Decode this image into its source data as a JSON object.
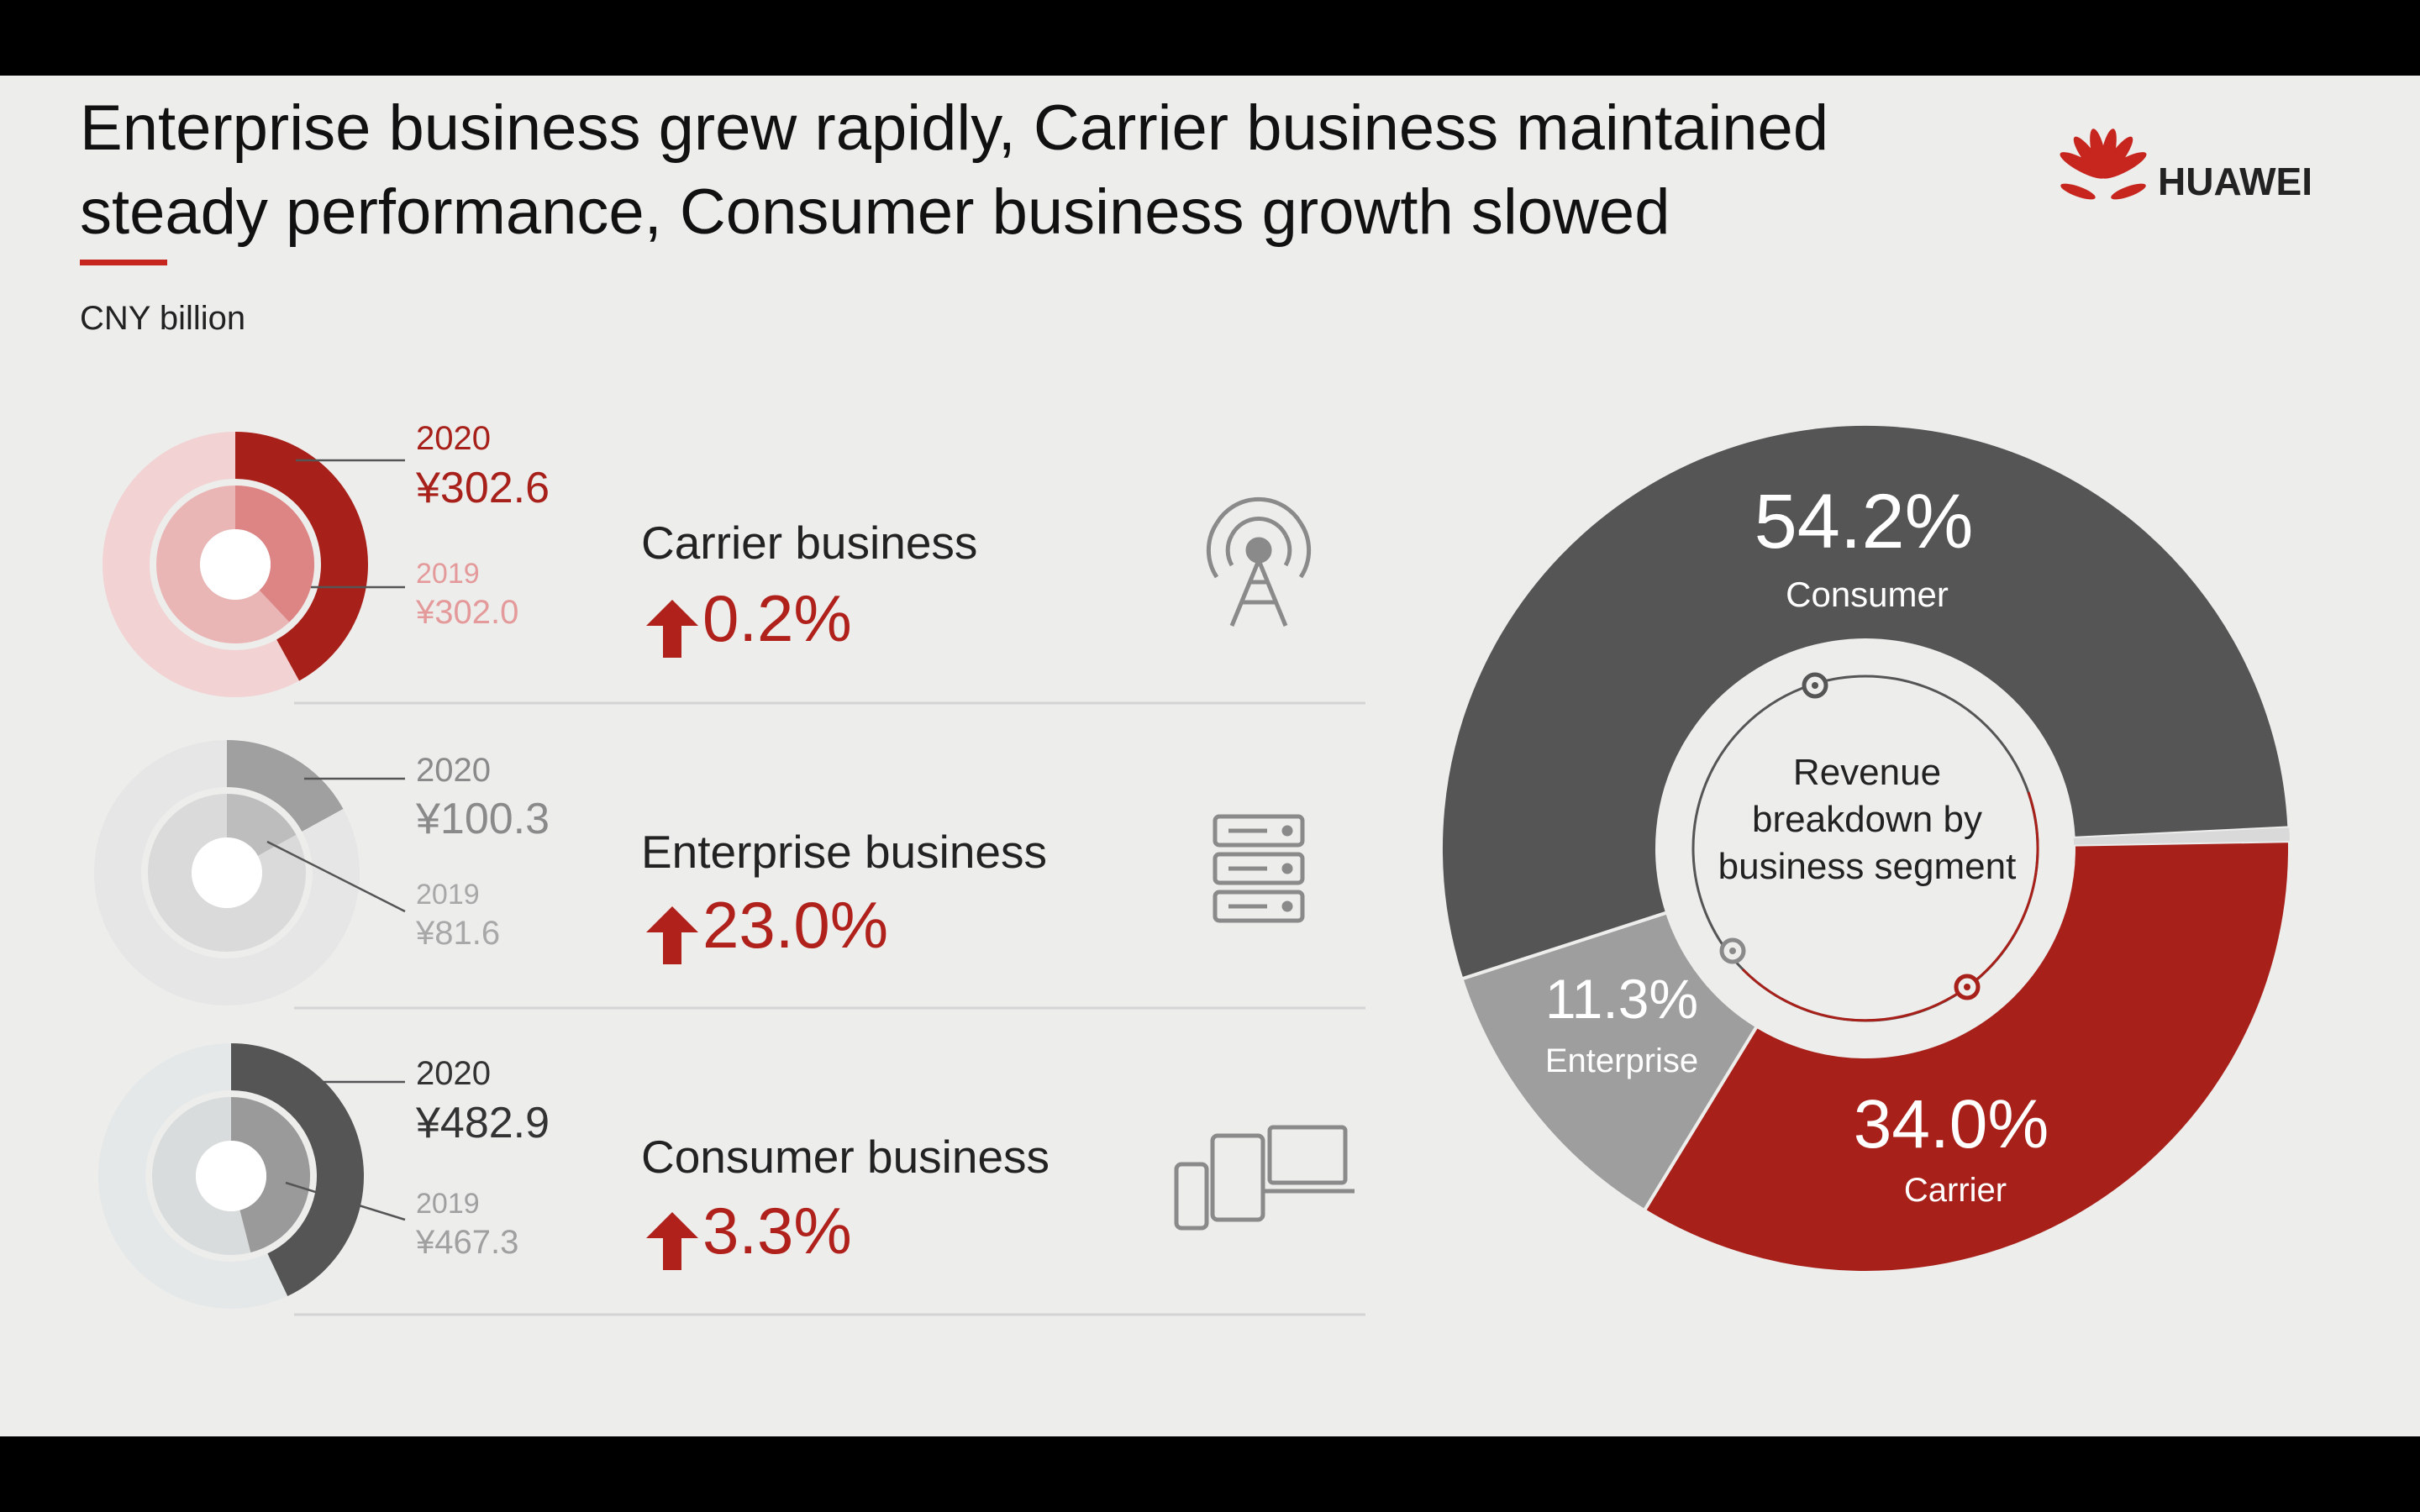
{
  "title": {
    "line1": "Enterprise business grew rapidly, Carrier business maintained",
    "line2": "steady performance, Consumer business growth slowed"
  },
  "brand": {
    "name": "HUAWEI",
    "logo_icon": "huawei-petal-logo"
  },
  "unit_label": "CNY billion",
  "colors": {
    "carrier_red": "#A8201A",
    "carrier_light": "#E08A8A",
    "enterprise_gray": "#9E9E9E",
    "consumer_dark": "#555555",
    "growth_red": "#B0211B"
  },
  "segments": [
    {
      "key": "carrier",
      "name": "Carrier business",
      "growth": "0.2%",
      "year_2020_label": "2020",
      "value_2020": "¥302.6",
      "year_2019_label": "2019",
      "value_2019": "¥302.0",
      "icon": "cell-tower-icon"
    },
    {
      "key": "enterprise",
      "name": "Enterprise business",
      "growth": "23.0%",
      "year_2020_label": "2020",
      "value_2020": "¥100.3",
      "year_2019_label": "2019",
      "value_2019": "¥81.6",
      "icon": "server-rack-icon"
    },
    {
      "key": "consumer",
      "name": "Consumer business",
      "growth": " 3.3%",
      "year_2020_label": "2020",
      "value_2020": "¥482.9",
      "year_2019_label": "2019",
      "value_2019": "¥467.3",
      "icon": "devices-icon"
    }
  ],
  "chart_data": [
    {
      "type": "pie",
      "title": "Revenue breakdown by business segment",
      "center_lines": [
        "Revenue",
        "breakdown by",
        "business segment"
      ],
      "categories": [
        "Consumer",
        "Carrier",
        "Enterprise"
      ],
      "values": [
        54.2,
        34.0,
        11.3
      ],
      "labels": [
        "54.2%",
        "34.0%",
        "11.3%"
      ],
      "colors": [
        "#555555",
        "#A8201A",
        "#9E9E9E"
      ]
    },
    {
      "type": "pie",
      "title": "Carrier business",
      "series": [
        {
          "name": "2020",
          "values": [
            302.6
          ]
        },
        {
          "name": "2019",
          "values": [
            302.0
          ]
        }
      ]
    },
    {
      "type": "pie",
      "title": "Enterprise business",
      "series": [
        {
          "name": "2020",
          "values": [
            100.3
          ]
        },
        {
          "name": "2019",
          "values": [
            81.6
          ]
        }
      ]
    },
    {
      "type": "pie",
      "title": "Consumer business",
      "series": [
        {
          "name": "2020",
          "values": [
            482.9
          ]
        },
        {
          "name": "2019",
          "values": [
            467.3
          ]
        }
      ]
    }
  ]
}
